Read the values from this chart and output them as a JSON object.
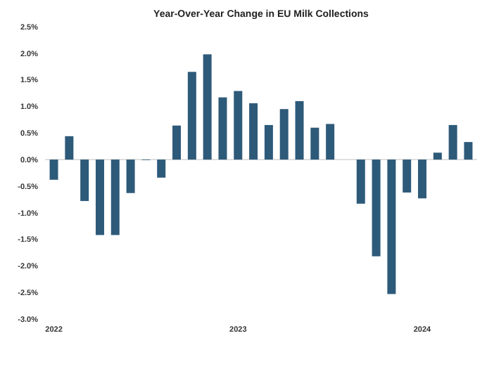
{
  "chart_data": {
    "type": "bar",
    "title": "Year-Over-Year Change in EU Milk Collections",
    "categories": [
      "2022",
      null,
      null,
      null,
      null,
      null,
      null,
      null,
      null,
      null,
      null,
      null,
      "2023",
      null,
      null,
      null,
      null,
      null,
      null,
      null,
      null,
      null,
      null,
      null,
      "2024",
      null,
      null,
      null
    ],
    "values": [
      -0.38,
      0.44,
      -0.78,
      -1.42,
      -1.42,
      -0.63,
      -0.01,
      -0.34,
      0.64,
      1.65,
      1.98,
      1.17,
      1.29,
      1.06,
      0.65,
      0.95,
      1.1,
      0.6,
      0.67,
      null,
      -0.83,
      -1.82,
      -2.53,
      -0.62,
      -0.73,
      0.13,
      0.65,
      0.33
    ],
    "color": "#2e5a7a",
    "ylim": [
      -3,
      2.5
    ],
    "yticks": [
      {
        "value": -3,
        "label": "-3.0%"
      },
      {
        "value": -2.5,
        "label": "-2.5%"
      },
      {
        "value": -2,
        "label": "-2.0%"
      },
      {
        "value": -1.5,
        "label": "-1.5%"
      },
      {
        "value": -1,
        "label": "-1.0%"
      },
      {
        "value": -0.5,
        "label": "-0.5%"
      },
      {
        "value": 0,
        "label": "0.0%"
      },
      {
        "value": 0.5,
        "label": "0.5%"
      },
      {
        "value": 1,
        "label": "1.0%"
      },
      {
        "value": 1.5,
        "label": "1.5%"
      },
      {
        "value": 2,
        "label": "2.0%"
      },
      {
        "value": 2.5,
        "label": "2.5%"
      }
    ]
  }
}
